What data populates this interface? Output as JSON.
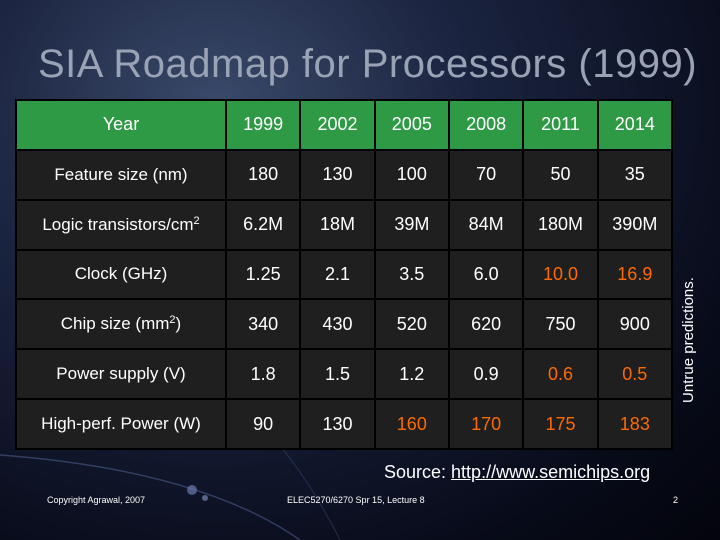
{
  "title": "SIA Roadmap for Processors (1999)",
  "table": {
    "header": {
      "label": "Year",
      "years": [
        "1999",
        "2002",
        "2005",
        "2008",
        "2011",
        "2014"
      ]
    },
    "rows": [
      {
        "label": "Feature size (nm)",
        "sup": "",
        "label_end": "",
        "values": [
          "180",
          "130",
          "100",
          "70",
          "50",
          "35"
        ],
        "highlight": [
          false,
          false,
          false,
          false,
          false,
          false
        ]
      },
      {
        "label": "Logic transistors/cm",
        "sup": "2",
        "label_end": "",
        "values": [
          "6.2M",
          "18M",
          "39M",
          "84M",
          "180M",
          "390M"
        ],
        "highlight": [
          false,
          false,
          false,
          false,
          false,
          false
        ]
      },
      {
        "label": "Clock (GHz)",
        "sup": "",
        "label_end": "",
        "values": [
          "1.25",
          "2.1",
          "3.5",
          "6.0",
          "10.0",
          "16.9"
        ],
        "highlight": [
          false,
          false,
          false,
          false,
          true,
          true
        ]
      },
      {
        "label": "Chip size (mm",
        "sup": "2",
        "label_end": ")",
        "values": [
          "340",
          "430",
          "520",
          "620",
          "750",
          "900"
        ],
        "highlight": [
          false,
          false,
          false,
          false,
          false,
          false
        ]
      },
      {
        "label": "Power supply (V)",
        "sup": "",
        "label_end": "",
        "values": [
          "1.8",
          "1.5",
          "1.2",
          "0.9",
          "0.6",
          "0.5"
        ],
        "highlight": [
          false,
          false,
          false,
          false,
          true,
          true
        ]
      },
      {
        "label": "High-perf. Power (W)",
        "sup": "",
        "label_end": "",
        "values": [
          "90",
          "130",
          "160",
          "170",
          "175",
          "183"
        ],
        "highlight": [
          false,
          false,
          true,
          true,
          true,
          true
        ]
      }
    ]
  },
  "side_note": "Untrue predictions.",
  "source": {
    "prefix": "Source: ",
    "link": "http://www.semichips.org"
  },
  "footer": {
    "left": "Copyright Agrawal, 2007",
    "middle": "ELEC5270/6270 Spr 15, Lecture 8",
    "page": "2"
  },
  "colors": {
    "header_bg": "#2e9a45",
    "cell_bg": "#1f1f1f",
    "highlight": "#ff6a00",
    "title": "#9aa3b5"
  }
}
